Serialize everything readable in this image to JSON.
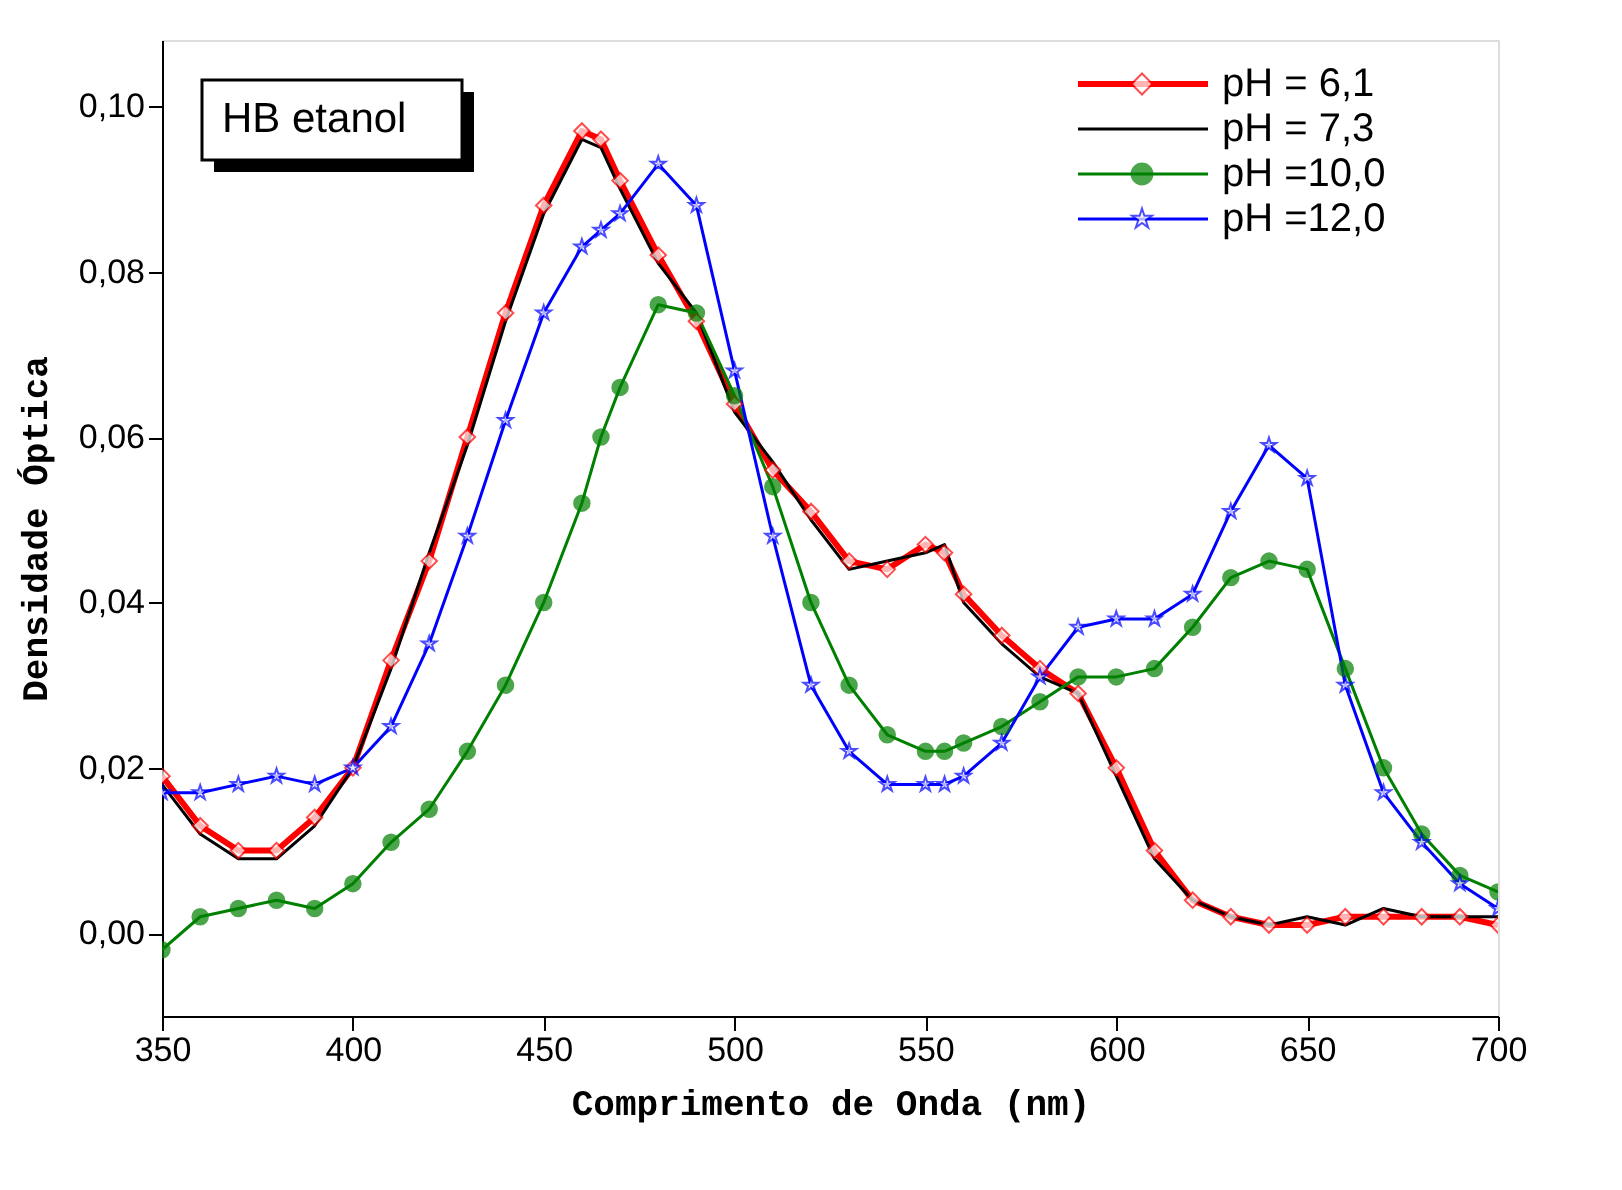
{
  "chart_data": {
    "type": "line",
    "xlabel": "Comprimento de Onda (nm)",
    "ylabel": "Densidade Óptica",
    "annotations": [
      "HB etanol"
    ],
    "xlim": [
      350,
      700
    ],
    "xticks": [
      350,
      400,
      450,
      500,
      550,
      600,
      650,
      700
    ],
    "ylim": [
      -0.01,
      0.108
    ],
    "yticks": [
      {
        "value": 0,
        "label": "0,00"
      },
      {
        "value": 0.02,
        "label": "0,02"
      },
      {
        "value": 0.04,
        "label": "0,04"
      },
      {
        "value": 0.06,
        "label": "0,06"
      },
      {
        "value": 0.08,
        "label": "0,08"
      },
      {
        "value": 0.1,
        "label": "0,10"
      }
    ],
    "grid": false,
    "legend": "top right",
    "x": [
      350,
      360,
      370,
      380,
      390,
      400,
      410,
      420,
      430,
      440,
      450,
      460,
      465,
      470,
      480,
      490,
      500,
      510,
      520,
      530,
      540,
      550,
      555,
      560,
      570,
      580,
      590,
      600,
      610,
      620,
      630,
      640,
      650,
      660,
      670,
      680,
      690,
      700
    ],
    "series": [
      {
        "name": "pH = 6,1",
        "color": "#ff0000",
        "marker": "diamond",
        "values": [
          0.019,
          0.013,
          0.01,
          0.01,
          0.014,
          0.02,
          0.033,
          0.045,
          0.06,
          0.075,
          0.088,
          0.097,
          0.096,
          0.091,
          0.082,
          0.074,
          0.064,
          0.056,
          0.051,
          0.045,
          0.044,
          0.047,
          0.046,
          0.041,
          0.036,
          0.032,
          0.029,
          0.02,
          0.01,
          0.004,
          0.002,
          0.001,
          0.001,
          0.002,
          0.002,
          0.002,
          0.002,
          0.001
        ]
      },
      {
        "name": "pH = 7,3",
        "color": "#000000",
        "marker": "none",
        "values": [
          0.018,
          0.012,
          0.009,
          0.009,
          0.013,
          0.02,
          0.032,
          0.046,
          0.059,
          0.074,
          0.087,
          0.096,
          0.095,
          0.09,
          0.081,
          0.075,
          0.063,
          0.057,
          0.05,
          0.044,
          0.045,
          0.046,
          0.047,
          0.04,
          0.035,
          0.031,
          0.029,
          0.019,
          0.009,
          0.004,
          0.002,
          0.001,
          0.002,
          0.001,
          0.003,
          0.002,
          0.002,
          0.002
        ]
      },
      {
        "name": "pH =10,0",
        "color": "#008000",
        "marker": "circle",
        "values": [
          -0.002,
          0.002,
          0.003,
          0.004,
          0.003,
          0.006,
          0.011,
          0.015,
          0.022,
          0.03,
          0.04,
          0.052,
          0.06,
          0.066,
          0.076,
          0.075,
          0.065,
          0.054,
          0.04,
          0.03,
          0.024,
          0.022,
          0.022,
          0.023,
          0.025,
          0.028,
          0.031,
          0.031,
          0.032,
          0.037,
          0.043,
          0.045,
          0.044,
          0.032,
          0.02,
          0.012,
          0.007,
          0.005
        ]
      },
      {
        "name": "pH =12,0",
        "color": "#0000ff",
        "marker": "star",
        "values": [
          0.017,
          0.017,
          0.018,
          0.019,
          0.018,
          0.02,
          0.025,
          0.035,
          0.048,
          0.062,
          0.075,
          0.083,
          0.085,
          0.087,
          0.093,
          0.088,
          0.068,
          0.048,
          0.03,
          0.022,
          0.018,
          0.018,
          0.018,
          0.019,
          0.023,
          0.031,
          0.037,
          0.038,
          0.038,
          0.041,
          0.051,
          0.059,
          0.055,
          0.03,
          0.017,
          0.011,
          0.006,
          0.003
        ]
      }
    ]
  }
}
